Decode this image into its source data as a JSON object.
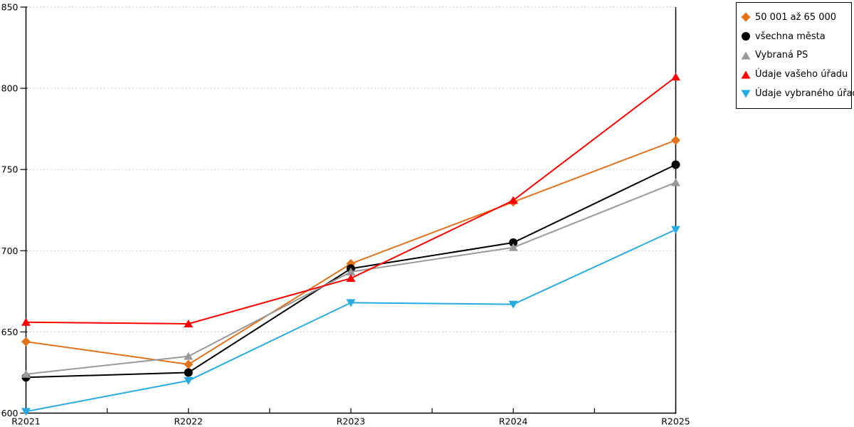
{
  "chart_data": {
    "type": "line",
    "title": "",
    "xlabel": "",
    "ylabel": "",
    "x_categories": [
      "R2021",
      "R2022",
      "R2023",
      "R2024",
      "R2025"
    ],
    "ylim": [
      600,
      850
    ],
    "yticks": [
      600,
      650,
      700,
      750,
      800,
      850
    ],
    "grid": "horizontal dotted",
    "legend_position": "top-right outside",
    "colors": {
      "grid": "#c4c4c4",
      "axis": "#000000",
      "background": "#ffffff"
    },
    "series": [
      {
        "name": "50 001 až 65 000",
        "color": "#e0731c",
        "marker": "diamond",
        "values": [
          644,
          630,
          692,
          730,
          768
        ]
      },
      {
        "name": "všechna města",
        "color": "#000000",
        "marker": "circle",
        "values": [
          622,
          625,
          689,
          705,
          753
        ]
      },
      {
        "name": "Vybraná PS",
        "color": "#999999",
        "marker": "triangle-up",
        "values": [
          624,
          635,
          687,
          702,
          742
        ]
      },
      {
        "name": "Údaje vašeho úřadu",
        "color": "#ff0000",
        "marker": "triangle-up",
        "values": [
          656,
          655,
          683,
          731,
          807
        ]
      },
      {
        "name": "Údaje vybraného úřadu",
        "color": "#29abe2",
        "marker": "triangle-down",
        "values": [
          601,
          620,
          668,
          667,
          713
        ]
      }
    ]
  }
}
